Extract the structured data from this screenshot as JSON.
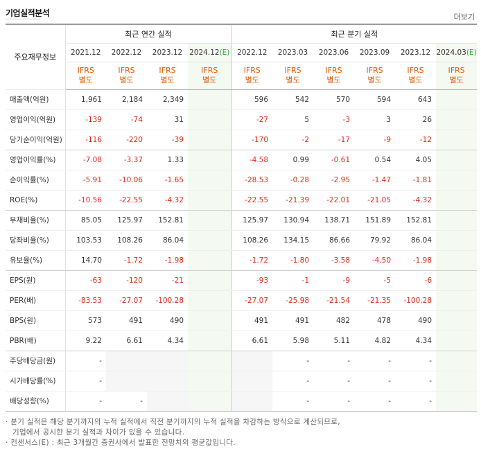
{
  "title": "기업실적분석",
  "more_label": "더보기",
  "corner_label": "주요재무정보",
  "groups": {
    "annual": "최근 연간 실적",
    "quarter": "최근 분기 실적"
  },
  "annual_periods": [
    "2021.12",
    "2022.12",
    "2023.12",
    "2024.12(E)"
  ],
  "quarter_periods": [
    "2022.12",
    "2023.03",
    "2023.06",
    "2023.09",
    "2023.12",
    "2024.03(E)"
  ],
  "standard": [
    "IFRS",
    "별도"
  ],
  "rows": [
    {
      "label": "매출액(억원)",
      "values": [
        "1,961",
        "2,184",
        "2,349",
        "",
        "596",
        "542",
        "570",
        "594",
        "643",
        ""
      ]
    },
    {
      "label": "영업이익(억원)",
      "values": [
        "-139",
        "-74",
        "31",
        "",
        "-27",
        "5",
        "-3",
        "3",
        "26",
        ""
      ]
    },
    {
      "label": "당기순이익(억원)",
      "values": [
        "-116",
        "-220",
        "-39",
        "",
        "-170",
        "-2",
        "-17",
        "-9",
        "-12",
        ""
      ]
    },
    {
      "label": "영업이익률(%)",
      "values": [
        "-7.08",
        "-3.37",
        "1.33",
        "",
        "-4.58",
        "0.99",
        "-0.61",
        "0.54",
        "4.05",
        ""
      ]
    },
    {
      "label": "순이익률(%)",
      "values": [
        "-5.91",
        "-10.06",
        "-1.65",
        "",
        "-28.53",
        "-0.28",
        "-2.95",
        "-1.47",
        "-1.81",
        ""
      ]
    },
    {
      "label": "ROE(%)",
      "values": [
        "-10.56",
        "-22.55",
        "-4.32",
        "",
        "-22.55",
        "-21.39",
        "-22.01",
        "-21.05",
        "-4.32",
        ""
      ]
    },
    {
      "label": "부채비율(%)",
      "values": [
        "85.05",
        "125.97",
        "152.81",
        "",
        "125.97",
        "130.94",
        "138.71",
        "151.89",
        "152.81",
        ""
      ]
    },
    {
      "label": "당좌비율(%)",
      "values": [
        "103.53",
        "108.26",
        "86.04",
        "",
        "108.26",
        "134.15",
        "86.66",
        "79.92",
        "86.04",
        ""
      ]
    },
    {
      "label": "유보율(%)",
      "values": [
        "14.70",
        "-1.72",
        "-1.98",
        "",
        "-1.72",
        "-1.80",
        "-3.58",
        "-4.50",
        "-1.98",
        ""
      ]
    },
    {
      "label": "EPS(원)",
      "values": [
        "-63",
        "-120",
        "-21",
        "",
        "-93",
        "-1",
        "-9",
        "-5",
        "-6",
        ""
      ]
    },
    {
      "label": "PER(배)",
      "values": [
        "-83.53",
        "-27.07",
        "-100.28",
        "",
        "-27.07",
        "-25.98",
        "-21.54",
        "-21.35",
        "-100.28",
        ""
      ]
    },
    {
      "label": "BPS(원)",
      "values": [
        "573",
        "491",
        "490",
        "",
        "491",
        "491",
        "482",
        "478",
        "490",
        ""
      ]
    },
    {
      "label": "PBR(배)",
      "values": [
        "9.22",
        "6.61",
        "4.34",
        "",
        "6.61",
        "5.98",
        "5.11",
        "4.82",
        "4.34",
        ""
      ]
    },
    {
      "label": "주당배당금(원)",
      "values": [
        "-",
        "",
        "",
        "",
        "",
        "-",
        "-",
        "-",
        "-",
        ""
      ]
    },
    {
      "label": "시가배당률(%)",
      "values": [
        "-",
        "",
        "",
        "",
        "",
        "-",
        "-",
        "-",
        "-",
        ""
      ]
    },
    {
      "label": "배당성향(%)",
      "values": [
        "-",
        "-",
        "",
        "",
        "",
        "-",
        "-",
        "-",
        "-",
        ""
      ]
    }
  ],
  "notes": [
    "분기 실적은 해당 분기까지의 누적 실적에서 직전 분기까지의 누적 실적을 차감하는 방식으로 계산되므로,",
    "기업에서 공시한 분기 실적과 차이가 있을 수 있습니다.",
    "컨센서스(E) : 최근 3개월간 증권사에서 발표한 전망치의 평균값입니다."
  ]
}
